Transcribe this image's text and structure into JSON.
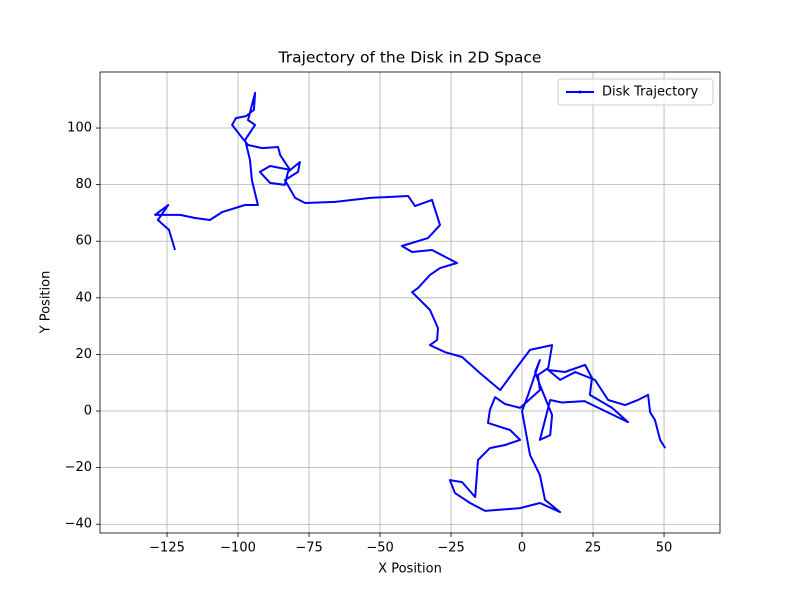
{
  "chart_data": {
    "type": "line",
    "title": "Trajectory of the Disk in 2D Space",
    "xlabel": "X Position",
    "ylabel": "Y Position",
    "xlim": [
      -148.6,
      69.7
    ],
    "ylim": [
      -43.1,
      119.8
    ],
    "xticks": [
      {
        "value": -125,
        "label": "−125"
      },
      {
        "value": -100,
        "label": "−100"
      },
      {
        "value": -75,
        "label": "−75"
      },
      {
        "value": -50,
        "label": "−50"
      },
      {
        "value": -25,
        "label": "−25"
      },
      0,
      25,
      50
    ],
    "yticks": [
      {
        "value": -40,
        "label": "−40"
      },
      {
        "value": -20,
        "label": "−20"
      },
      0,
      20,
      40,
      60,
      80,
      100
    ],
    "grid": true,
    "legend": "upper right",
    "series": [
      {
        "name": "Disk Trajectory",
        "color": "#0000ff",
        "x": [
          50.4,
          48.6,
          46.8,
          45.1,
          44.4,
          40.8,
          36.3,
          30.3,
          25.7,
          18.7,
          13.4,
          9.2,
          15.1,
          22.2,
          24.6,
          23.9,
          31.7,
          37.3,
          22,
          14,
          9.9,
          8.1,
          6.3,
          9.9,
          10.6,
          6.3,
          4.6,
          6.3,
          2.1,
          0,
          2.8,
          6.3,
          8.1,
          13.4,
          6.3,
          -0.7,
          -13,
          -18.3,
          -23.6,
          -25.4,
          -21.1,
          -16.5,
          -15.5,
          -11.3,
          -6,
          -0.7,
          -4.2,
          -12,
          -11.3,
          -9.5,
          -6,
          -0.7,
          6.3,
          5.6,
          9.2,
          10.6,
          2.8,
          -2.5,
          -7.7,
          -14.8,
          -21.1,
          -27.1,
          -32.4,
          -29.9,
          -29.6,
          -32.4,
          -35.9,
          -38.7,
          -36.6,
          -32.4,
          -28.9,
          -22.9,
          -31.7,
          -38.7,
          -42.3,
          -33.1,
          -28.9,
          -31.7,
          -37.7,
          -40.1,
          -53.5,
          -65.8,
          -76.4,
          -79.9,
          -83.5,
          -78.9,
          -78.2,
          -82.4,
          -83.5,
          -88.7,
          -92.3,
          -88.7,
          -81.7,
          -85.2,
          -85.9,
          -91.5,
          -96.5,
          -99.3,
          -102.1,
          -100.7,
          -97.2,
          -94.4,
          -94,
          -96.5,
          -94,
          -97.5,
          -95.8,
          -95.1,
          -93,
          -97.5,
          -105.6,
          -109.9,
          -115.1,
          -120.4,
          -125.7,
          -129.2,
          -124.6,
          -128.2,
          -124.3,
          -122.2
        ],
        "values": [
          -13.1,
          -10.2,
          -3.2,
          -0.4,
          5.7,
          3.9,
          2.1,
          3.9,
          11,
          13.8,
          11,
          14.5,
          13.8,
          16.3,
          11.7,
          5.7,
          1.1,
          -3.9,
          3.5,
          3,
          3.9,
          -3.2,
          -10.2,
          -8.5,
          -1.4,
          9.2,
          13.8,
          18,
          5.6,
          0,
          -15.5,
          -22.6,
          -31.4,
          -35.7,
          -32.5,
          -34.3,
          -35.3,
          -32.5,
          -29,
          -24.4,
          -25.1,
          -30.4,
          -17.3,
          -13.1,
          -12,
          -10.2,
          -6.7,
          -4.2,
          0.4,
          4.9,
          2.5,
          1.1,
          7.4,
          12.7,
          15.2,
          23.3,
          21.6,
          14.5,
          7.4,
          13.4,
          19.1,
          20.8,
          23.3,
          25.1,
          29.3,
          35.7,
          39.2,
          42,
          43.5,
          48.1,
          50.5,
          52.3,
          56.9,
          56.2,
          58.3,
          61.1,
          65.7,
          74.6,
          72.4,
          76,
          75.3,
          73.9,
          73.5,
          75.3,
          81.6,
          84.5,
          88,
          84.5,
          79.9,
          80.6,
          84.5,
          86.6,
          85.2,
          90.5,
          93.3,
          92.9,
          94,
          97.5,
          101.1,
          103.5,
          104.2,
          106.4,
          112.4,
          102.8,
          101.1,
          95.8,
          88.7,
          81.6,
          72.8,
          72.8,
          70.3,
          67.5,
          68.2,
          69.3,
          69.3,
          69.3,
          72.8,
          67.5,
          64,
          56.9
        ]
      }
    ]
  }
}
